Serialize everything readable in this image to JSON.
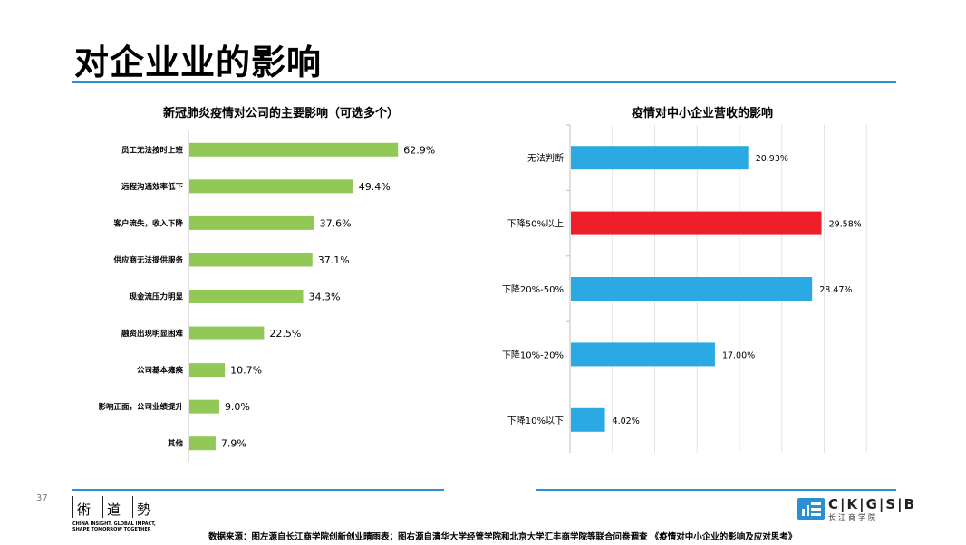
{
  "page": {
    "title": "对企业业的影响",
    "page_number": "37",
    "source_note": "数据来源：图左源自长江商学院创新创业晴雨表；图右源自清华大学经管学院和北京大学汇丰商学院等联合问卷调查 《疫情对中小企业的影响及应对思考》"
  },
  "logos": {
    "left_seal_chars": [
      "術",
      "道",
      "勢"
    ],
    "left_tagline_1": "CHINA INSIGHT, GLOBAL IMPACT,",
    "left_tagline_2": "SHAPE TOMORROW TOGETHER",
    "right_brand": "C|K|G|S|B",
    "right_sub": "长江商学院"
  },
  "colors": {
    "green_bar": "#92c855",
    "blue_bar": "#2aa9e3",
    "red_bar": "#ee1f2a",
    "accent_rule": "#2b8fd6"
  },
  "chart_data": [
    {
      "type": "bar",
      "orientation": "horizontal",
      "title": "新冠肺炎疫情对公司的主要影响（可选多个）",
      "categories": [
        "员工无法按时上班",
        "远程沟通效率低下",
        "客户流失，收入下降",
        "供应商无法提供服务",
        "现金流压力明显",
        "融资出现明显困难",
        "公司基本瘫痪",
        "影响正面，公司业绩提升",
        "其他"
      ],
      "values": [
        62.9,
        49.4,
        37.6,
        37.1,
        34.3,
        22.5,
        10.7,
        9.0,
        7.9
      ],
      "labels": [
        "62.9%",
        "49.4%",
        "37.6%",
        "37.1%",
        "34.3%",
        "22.5%",
        "10.7%",
        "9.0%",
        "7.9%"
      ],
      "xlim": [
        0,
        100
      ],
      "grid": false,
      "color": "#92c855"
    },
    {
      "type": "bar",
      "orientation": "horizontal",
      "title": "疫情对中小企业营收的影响",
      "categories": [
        "无法判断",
        "下降50%以上",
        "下降20%-50%",
        "下降10%-20%",
        "下降10%以下"
      ],
      "values": [
        20.93,
        29.58,
        28.47,
        17.0,
        4.02
      ],
      "labels": [
        "20.93%",
        "29.58%",
        "28.47%",
        "17.00%",
        "4.02%"
      ],
      "colors": [
        "#2aa9e3",
        "#ee1f2a",
        "#2aa9e3",
        "#2aa9e3",
        "#2aa9e3"
      ],
      "xlim": [
        0,
        35
      ],
      "grid": true
    }
  ]
}
